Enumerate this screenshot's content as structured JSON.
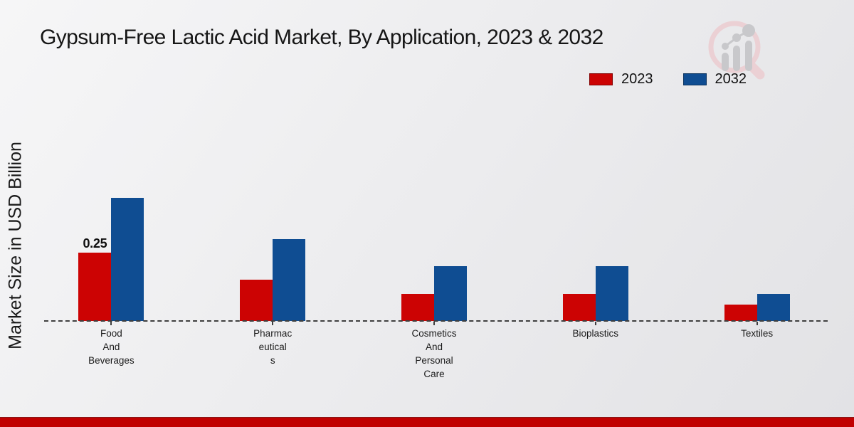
{
  "title": "Gypsum-Free Lactic Acid Market, By Application, 2023 & 2032",
  "y_axis": {
    "label": "Market Size in USD Billion"
  },
  "legend": {
    "items": [
      {
        "label": "2023",
        "color": "#cc0303"
      },
      {
        "label": "2032",
        "color": "#0f4d92"
      }
    ]
  },
  "branding": {
    "logo_name": "magnifier-bar-chart-logo",
    "bottom_bar_color": "#c10000"
  },
  "chart_data": {
    "type": "bar",
    "title": "Gypsum-Free Lactic Acid Market, By Application, 2023 & 2032",
    "xlabel": "",
    "ylabel": "Market Size in USD Billion",
    "categories": [
      "Food And Beverages",
      "Pharmaceuticals",
      "Cosmetics And Personal Care",
      "Bioplastics",
      "Textiles"
    ],
    "category_label_lines": [
      [
        "Food",
        "And",
        "Beverages"
      ],
      [
        "Pharmac",
        "eutical",
        "s"
      ],
      [
        "Cosmetics",
        "And",
        "Personal",
        "Care"
      ],
      [
        "Bioplastics"
      ],
      [
        "Textiles"
      ]
    ],
    "series": [
      {
        "name": "2023",
        "color": "#cc0303",
        "values": [
          0.25,
          0.15,
          0.1,
          0.1,
          0.06
        ]
      },
      {
        "name": "2032",
        "color": "#0f4d92",
        "values": [
          0.45,
          0.3,
          0.2,
          0.2,
          0.1
        ]
      }
    ],
    "annotations": [
      {
        "series_index": 0,
        "category_index": 0,
        "text": "0.25"
      }
    ],
    "ylim": [
      0,
      0.5
    ],
    "grid": false,
    "y_ticks_visible": false,
    "legend_position": "top-right",
    "baseline_style": "dashed"
  }
}
